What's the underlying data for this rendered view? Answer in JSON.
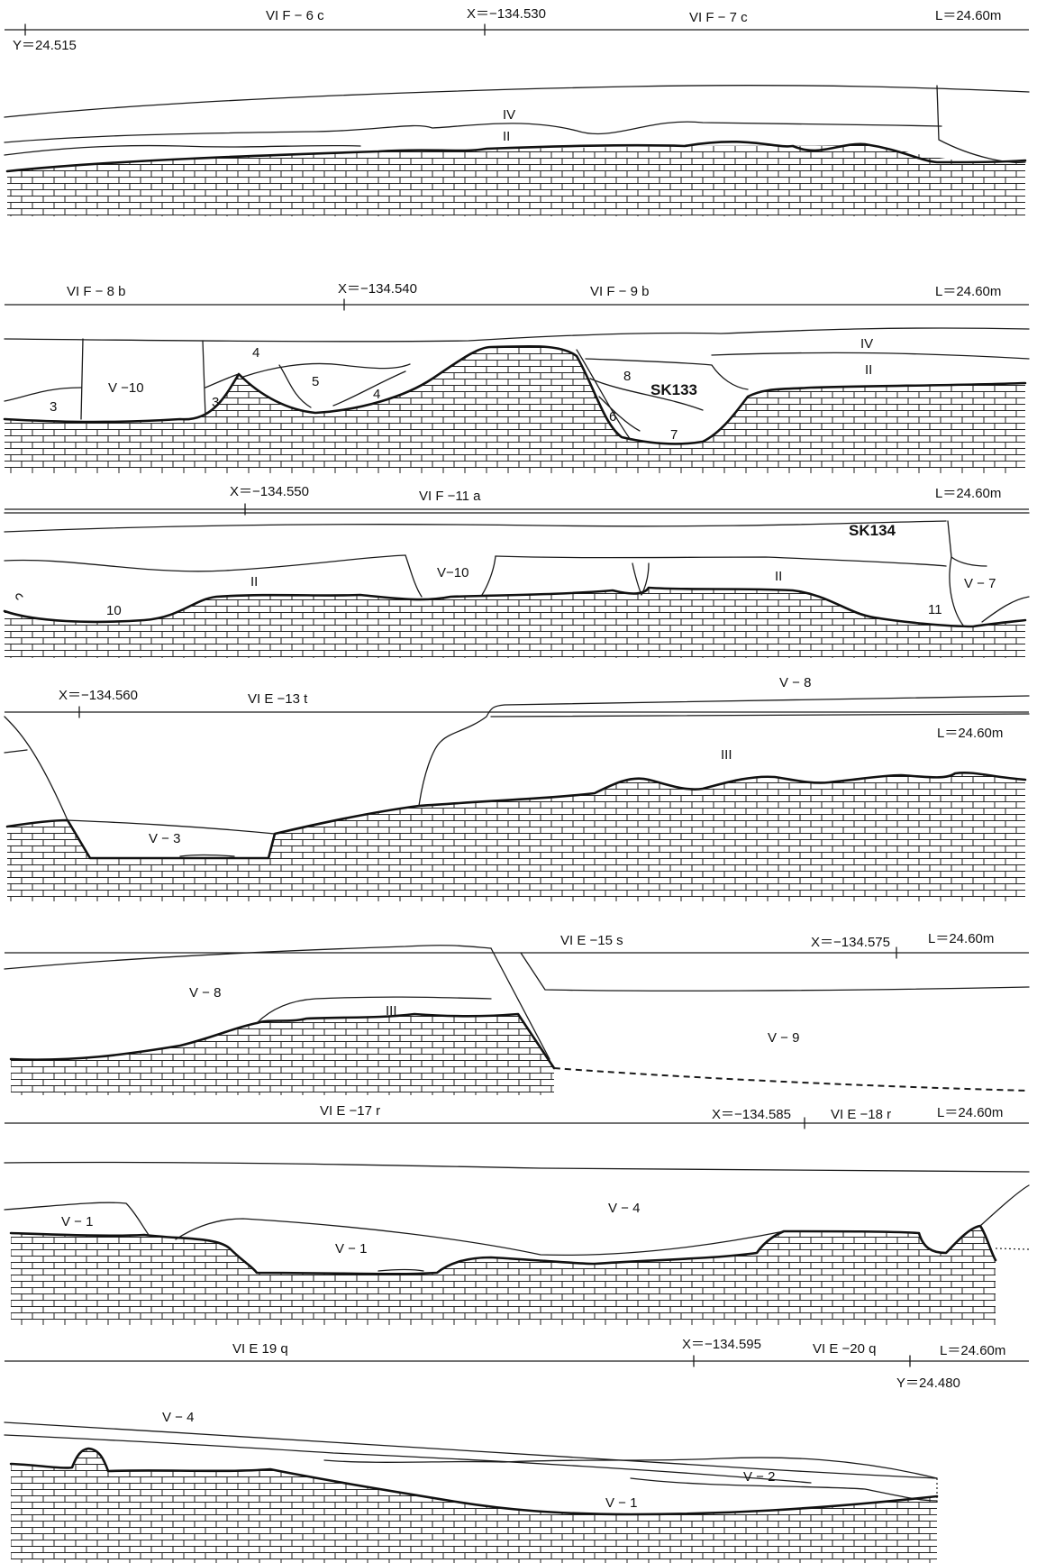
{
  "palette": {
    "line": "#1a1a1a",
    "bedrock_line": "#111111",
    "paper": "#ffffff"
  },
  "sections": [
    {
      "header": {
        "grid_a": "VI F − 6 c",
        "x_coord": "X＝−134.530",
        "grid_b": "VI F − 7 c",
        "level": "L＝24.60m"
      },
      "y_coord": "Y＝24.515",
      "labels": [
        "IV",
        "II"
      ]
    },
    {
      "header": {
        "grid_a": "VI F − 8 b",
        "x_coord": "X＝−134.540",
        "grid_b": "VI F − 9 b",
        "level": "L＝24.60m"
      },
      "labels": [
        "V −10",
        "3",
        "3",
        "4",
        "5",
        "4",
        "8",
        "SK133",
        "6",
        "7",
        "IV",
        "II"
      ]
    },
    {
      "header": {
        "x_coord": "X＝−134.550",
        "grid_a": "VI F −11 a",
        "level": "L＝24.60m"
      },
      "labels": [
        "SK134",
        "II",
        "V−10",
        "II",
        "10",
        "V − 7",
        "11"
      ]
    },
    {
      "header": {
        "x_coord": "X＝−134.560",
        "grid_a": "VI E −13 t",
        "level": "L＝24.60m"
      },
      "labels": [
        "V − 8",
        "III",
        "V − 3"
      ]
    },
    {
      "header": {
        "grid_a": "VI E −15 s",
        "x_coord": "X＝−134.575",
        "level": "L＝24.60m"
      },
      "labels": [
        "V − 8",
        "III",
        "V − 9"
      ]
    },
    {
      "header": {
        "grid_a": "VI E −17 r",
        "x_coord": "X＝−134.585",
        "grid_b": "VI E −18 r",
        "level": "L＝24.60m"
      },
      "labels": [
        "V − 1",
        "V − 4",
        "V − 1"
      ]
    },
    {
      "header": {
        "grid_a": "VI E 19 q",
        "x_coord": "X＝−134.595",
        "grid_b": "VI E −20 q",
        "level": "L＝24.60m"
      },
      "y_coord": "Y＝24.480",
      "labels": [
        "V − 4",
        "V − 2",
        "V − 1"
      ]
    }
  ]
}
